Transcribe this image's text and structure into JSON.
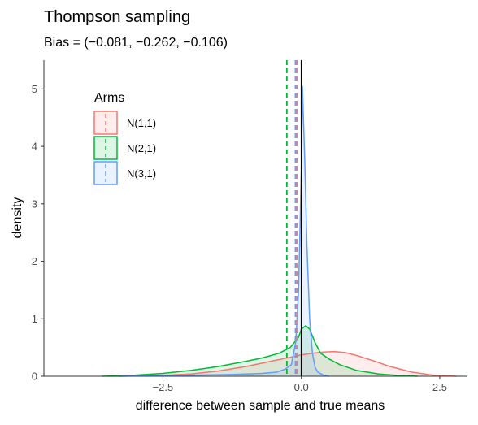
{
  "chart_data": {
    "type": "area",
    "title": "Thompson sampling",
    "subtitle": "Bias = (−0.081, −0.262, −0.106)",
    "xlabel": "difference between sample and true means",
    "ylabel": "density",
    "xlim": [
      -4.65,
      3.0
    ],
    "ylim": [
      0,
      5.5
    ],
    "x_ticks": [
      -2.5,
      0.0,
      2.5
    ],
    "x_tick_labels": [
      "−2.5",
      "0.0",
      "2.5"
    ],
    "y_ticks": [
      0,
      1,
      2,
      3,
      4,
      5
    ],
    "y_tick_labels": [
      "0",
      "1",
      "2",
      "3",
      "4",
      "5"
    ],
    "grid": false,
    "reference_line_x": 0,
    "legend": {
      "title": "Arms",
      "placement": "top-left",
      "entries": [
        "N(1,1)",
        "N(2,1)",
        "N(3,1)"
      ]
    },
    "series": [
      {
        "name": "N(1,1)",
        "color": "#F8766D",
        "fill": "#F8766D",
        "mean_line": -0.081,
        "x": [
          -3.5,
          -3.0,
          -2.5,
          -2.0,
          -1.5,
          -1.0,
          -0.5,
          -0.2,
          0.0,
          0.2,
          0.4,
          0.6,
          0.8,
          1.0,
          1.3,
          1.6,
          2.0,
          2.4,
          2.8
        ],
        "y": [
          0.0,
          0.003,
          0.015,
          0.04,
          0.09,
          0.17,
          0.27,
          0.33,
          0.37,
          0.4,
          0.42,
          0.43,
          0.41,
          0.36,
          0.27,
          0.17,
          0.07,
          0.015,
          0.0
        ]
      },
      {
        "name": "N(2,1)",
        "color": "#00BA38",
        "fill": "#00BA38",
        "mean_line": -0.262,
        "x": [
          -3.6,
          -3.0,
          -2.5,
          -2.0,
          -1.5,
          -1.0,
          -0.7,
          -0.4,
          -0.2,
          -0.05,
          0.0,
          0.08,
          0.15,
          0.25,
          0.35,
          0.5,
          0.7,
          1.0,
          1.4,
          1.8,
          2.1
        ],
        "y": [
          0.0,
          0.02,
          0.05,
          0.1,
          0.17,
          0.26,
          0.32,
          0.4,
          0.5,
          0.68,
          0.82,
          0.88,
          0.82,
          0.58,
          0.4,
          0.3,
          0.2,
          0.1,
          0.04,
          0.01,
          0.0
        ]
      },
      {
        "name": "N(3,1)",
        "color": "#619CFF",
        "fill": "#619CFF",
        "mean_line": -0.106,
        "x": [
          -3.3,
          -2.8,
          -2.5,
          -2.2,
          -1.9,
          -1.6,
          -1.3,
          -1.0,
          -0.7,
          -0.45,
          -0.3,
          -0.18,
          -0.1,
          -0.05,
          0.0,
          0.02,
          0.06,
          0.1,
          0.15,
          0.2,
          0.25,
          0.3,
          0.4,
          0.5
        ],
        "y": [
          0.0,
          0.01,
          0.02,
          0.015,
          0.02,
          0.025,
          0.03,
          0.04,
          0.05,
          0.07,
          0.12,
          0.2,
          0.6,
          1.5,
          3.6,
          5.05,
          3.8,
          2.3,
          1.0,
          0.4,
          0.15,
          0.07,
          0.02,
          0.0
        ]
      }
    ]
  }
}
